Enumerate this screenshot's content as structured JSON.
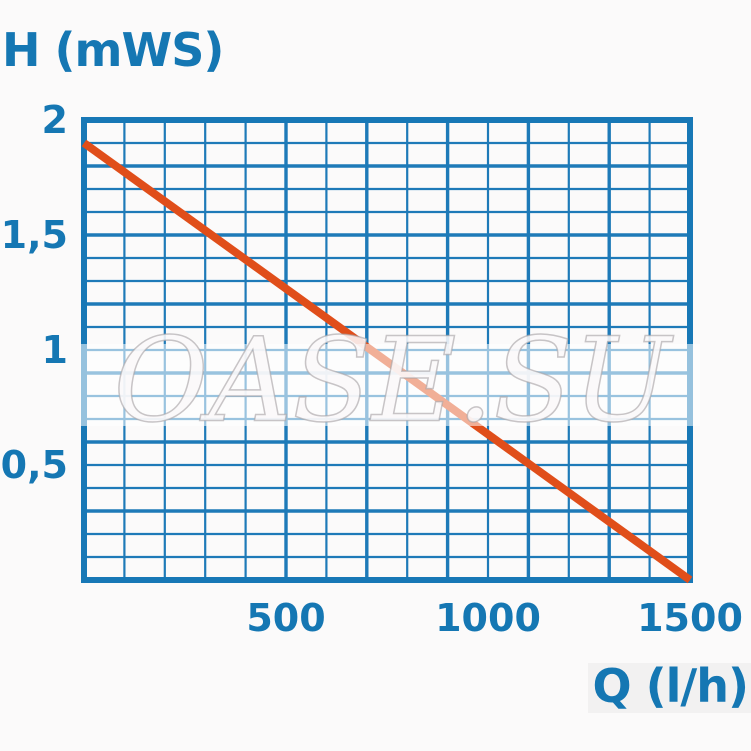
{
  "page": {
    "background": "#fbfafa"
  },
  "chart_data": {
    "type": "line",
    "title": "",
    "ylabel": "H (mWS)",
    "xlabel": "Q (l/h)",
    "xlim": [
      0,
      1500
    ],
    "ylim": [
      0,
      2
    ],
    "x_ticks": [
      {
        "label": "500",
        "value": 500
      },
      {
        "label": "1000",
        "value": 1000
      },
      {
        "label": "1500",
        "value": 1500
      }
    ],
    "y_ticks": [
      {
        "label": "2",
        "value": 2
      },
      {
        "label": "1,5",
        "value": 1.5
      },
      {
        "label": "1",
        "value": 1
      },
      {
        "label": "0,5",
        "value": 0.5
      }
    ],
    "grid": {
      "on": true,
      "x_minor_step": 100,
      "y_minor_step": 0.1,
      "x_heavy": [
        500,
        700,
        900,
        1100,
        1300
      ],
      "y_heavy": [
        1.8,
        1.5,
        1.2,
        0.9,
        0.6,
        0.3
      ]
    },
    "series": [
      {
        "name": "pump-head-curve",
        "color": "#e04e1a",
        "points": [
          [
            0,
            1.9
          ],
          [
            1500,
            0
          ]
        ]
      }
    ],
    "legend": null,
    "watermark": "OASE.SU",
    "colors": {
      "grid": "#1e7ab8",
      "border": "#1878b6",
      "text": "#1577b3"
    }
  }
}
